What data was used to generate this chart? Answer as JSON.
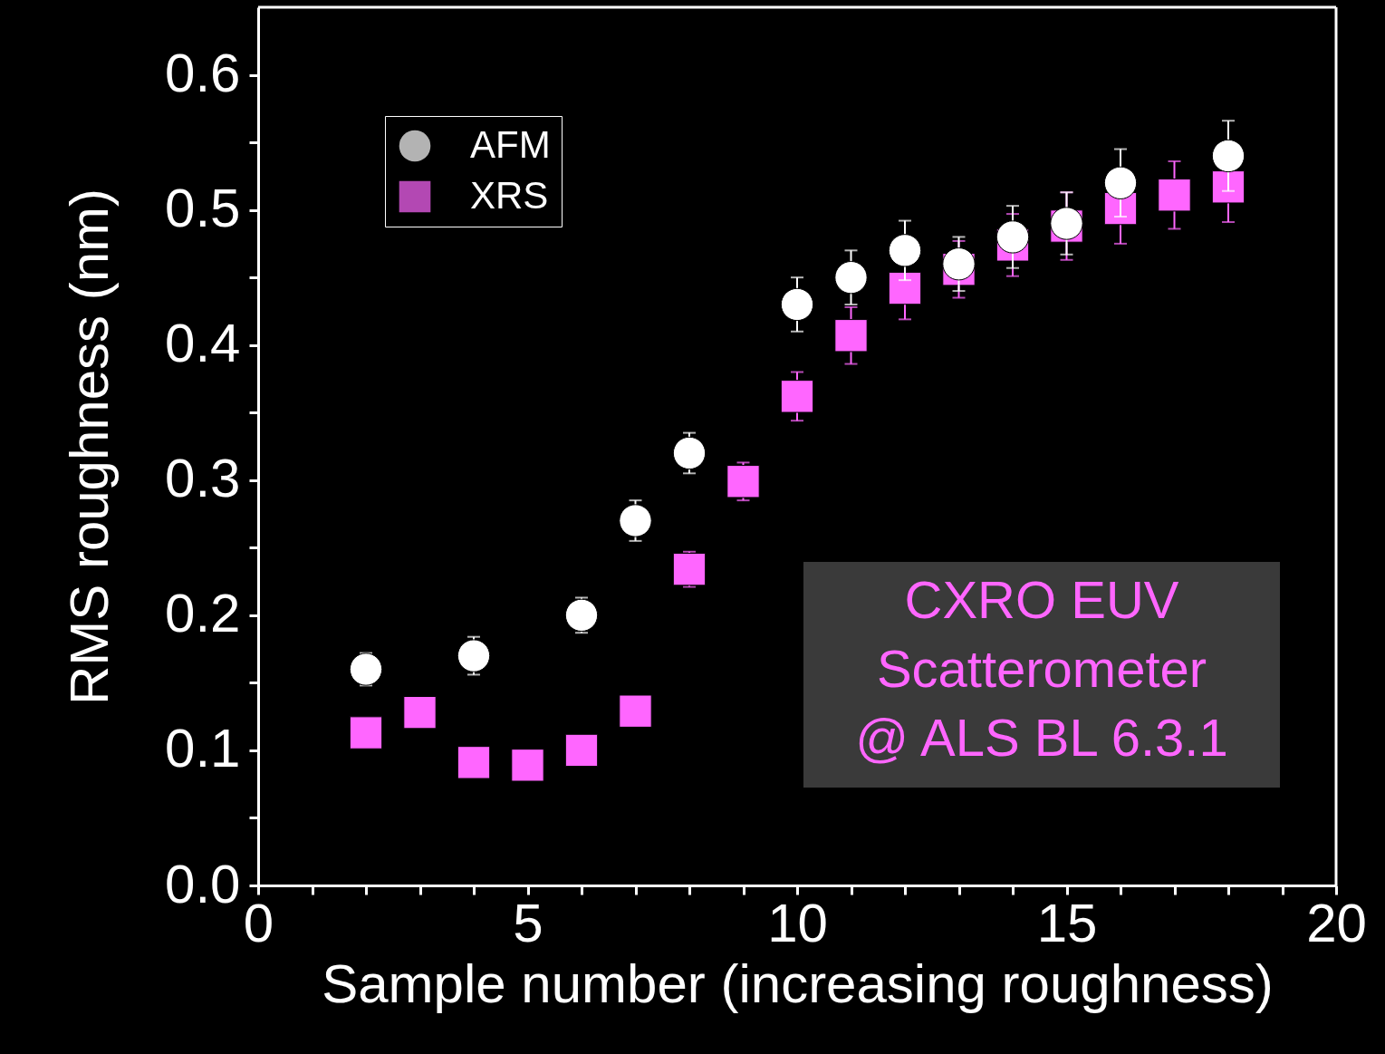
{
  "chart_data": {
    "type": "scatter",
    "xlabel": "Sample number (increasing roughness)",
    "ylabel": "RMS roughness (nm)",
    "xlim": [
      0,
      20
    ],
    "ylim": [
      0,
      0.65
    ],
    "xticks": [
      0,
      {
        "value": 1,
        "label": null
      },
      {
        "value": 2,
        "label": null
      },
      {
        "value": 3,
        "label": null
      },
      {
        "value": 4,
        "label": null
      },
      5,
      {
        "value": 6,
        "label": null
      },
      {
        "value": 7,
        "label": null
      },
      {
        "value": 8,
        "label": null
      },
      {
        "value": 9,
        "label": null
      },
      10,
      {
        "value": 11,
        "label": null
      },
      {
        "value": 12,
        "label": null
      },
      {
        "value": 13,
        "label": null
      },
      {
        "value": 14,
        "label": null
      },
      15,
      {
        "value": 16,
        "label": null
      },
      {
        "value": 17,
        "label": null
      },
      {
        "value": 18,
        "label": null
      },
      {
        "value": 19,
        "label": null
      },
      20
    ],
    "yticks": [
      {
        "value": 0,
        "label": "0.0"
      },
      {
        "value": 0.05,
        "label": null
      },
      0.1,
      {
        "value": 0.15,
        "label": null
      },
      0.2,
      {
        "value": 0.25,
        "label": null
      },
      0.3,
      {
        "value": 0.35,
        "label": null
      },
      0.4,
      {
        "value": 0.45,
        "label": null
      },
      0.5,
      {
        "value": 0.55,
        "label": null
      },
      0.6
    ],
    "grid": false,
    "legend": "top left",
    "series": [
      {
        "name": "AFM",
        "color": "#ffffff",
        "marker": "circle",
        "x": [
          2,
          4,
          6,
          7,
          8,
          10,
          11,
          12,
          13,
          14,
          15,
          16,
          18
        ],
        "values": [
          0.16,
          0.17,
          0.2,
          0.27,
          0.32,
          0.43,
          0.45,
          0.47,
          0.46,
          0.48,
          0.49,
          0.52,
          0.54
        ],
        "errors": [
          0.012,
          0.014,
          0.013,
          0.015,
          0.015,
          0.02,
          0.02,
          0.022,
          0.02,
          0.023,
          0.023,
          0.025,
          0.026
        ]
      },
      {
        "name": "XRS",
        "color": "#ff66ff",
        "marker": "square",
        "x": [
          2,
          3,
          4,
          5,
          6,
          7,
          8,
          9,
          10,
          11,
          12,
          13,
          14,
          15,
          16,
          17,
          18
        ],
        "values": [
          0.113,
          0.128,
          0.091,
          0.089,
          0.1,
          0.129,
          0.234,
          0.299,
          0.362,
          0.407,
          0.442,
          0.456,
          0.474,
          0.488,
          0.501,
          0.511,
          0.517
        ],
        "errors": [
          0.01,
          0.01,
          0.01,
          0.01,
          0.01,
          0.01,
          0.013,
          0.014,
          0.018,
          0.021,
          0.023,
          0.021,
          0.023,
          0.025,
          0.026,
          0.025,
          0.026
        ]
      }
    ],
    "annotations": [
      "CXRO EUV\nScatterometer\n@ ALS BL 6.3.1"
    ]
  }
}
